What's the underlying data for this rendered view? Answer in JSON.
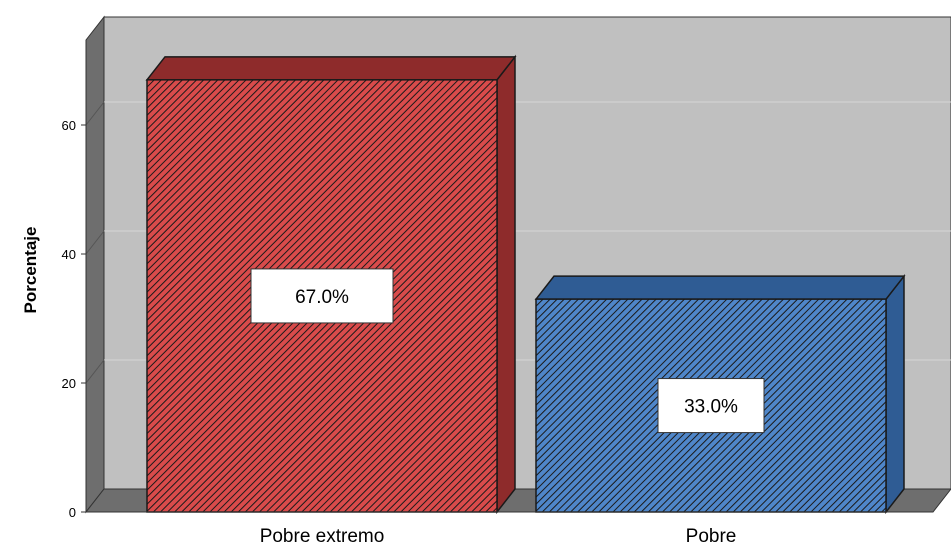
{
  "chart_data": {
    "type": "bar",
    "style": "3d",
    "categories": [
      "Pobre extremo",
      "Pobre"
    ],
    "values": [
      67.0,
      33.0
    ],
    "data_labels": [
      "67.0%",
      "33.0%"
    ],
    "ylabel": "Porcentaje",
    "xlabel": "",
    "ylim": [
      0,
      70
    ],
    "yticks": [
      0,
      20,
      40,
      60
    ],
    "grid": true,
    "legend": "none",
    "colors": {
      "bars": [
        "#d94b4b",
        "#4f86c9"
      ],
      "bar_sides": [
        "#8e2b2b",
        "#2f5c94"
      ],
      "plot_background": "#c0c0c0",
      "wall_side": "#6e6e6e",
      "gridline": "#d6d6d6"
    }
  }
}
